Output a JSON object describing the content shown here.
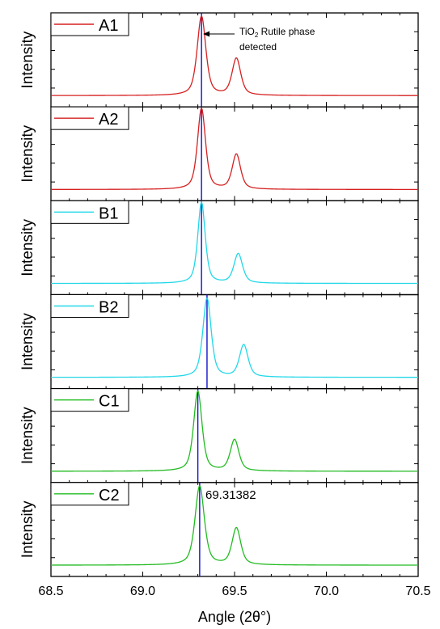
{
  "chart_data": {
    "type": "line",
    "xlabel": "Angle (2θ°)",
    "ylabel": "Intensity",
    "xlim": [
      68.5,
      70.5
    ],
    "xticks": [
      "68.5",
      "69.0",
      "69.5",
      "70.0",
      "70.5"
    ],
    "grid": false,
    "legend_placement": "top-left",
    "colors": {
      "red": "#d62020",
      "cyan": "#22d8e8",
      "green": "#22bb22",
      "marker_line": "#1010cc"
    },
    "annotation": {
      "text_line1": "TiO",
      "text_sub": "2",
      "text_rest": " Rutile phase",
      "text_line2": "detected",
      "x": 69.32
    },
    "peak_label": "69.31382",
    "panels": [
      {
        "name": "A1",
        "color": "#d62020",
        "marker_x": 69.32,
        "peaks": [
          {
            "x": 69.32,
            "h": 0.86,
            "w": 0.028
          },
          {
            "x": 69.51,
            "h": 0.4,
            "w": 0.028
          }
        ]
      },
      {
        "name": "A2",
        "color": "#d62020",
        "marker_x": 69.32,
        "peaks": [
          {
            "x": 69.32,
            "h": 0.88,
            "w": 0.026
          },
          {
            "x": 69.51,
            "h": 0.38,
            "w": 0.027
          }
        ]
      },
      {
        "name": "B1",
        "color": "#22d8e8",
        "marker_x": 69.32,
        "peaks": [
          {
            "x": 69.32,
            "h": 0.88,
            "w": 0.024
          },
          {
            "x": 69.52,
            "h": 0.32,
            "w": 0.028
          }
        ]
      },
      {
        "name": "B2",
        "color": "#22d8e8",
        "marker_x": 69.35,
        "peaks": [
          {
            "x": 69.35,
            "h": 0.86,
            "w": 0.027
          },
          {
            "x": 69.55,
            "h": 0.35,
            "w": 0.028
          }
        ]
      },
      {
        "name": "C1",
        "color": "#22bb22",
        "marker_x": 69.3,
        "peaks": [
          {
            "x": 69.3,
            "h": 0.87,
            "w": 0.027
          },
          {
            "x": 69.5,
            "h": 0.34,
            "w": 0.028
          }
        ]
      },
      {
        "name": "C2",
        "color": "#22bb22",
        "marker_x": 69.31,
        "peaks": [
          {
            "x": 69.31,
            "h": 0.86,
            "w": 0.03
          },
          {
            "x": 69.51,
            "h": 0.4,
            "w": 0.028
          }
        ]
      }
    ]
  }
}
